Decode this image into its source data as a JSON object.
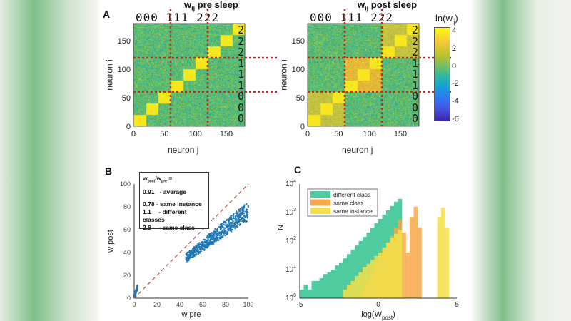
{
  "panels": {
    "a": "A",
    "b": "B",
    "c": "C"
  },
  "chart_data": [
    {
      "type": "heatmap",
      "id": "pre",
      "title": "w_ij pre sleep",
      "title_main": "w",
      "title_sub": "ij",
      "title_rest": " pre sleep",
      "xlabel": "neuron j",
      "ylabel": "neuron i",
      "xlim": [
        0,
        180
      ],
      "ylim": [
        0,
        180
      ],
      "xticks": [
        "0",
        "50",
        "100",
        "150"
      ],
      "yticks": [
        "0",
        "50",
        "100",
        "150"
      ],
      "class_boundaries": [
        60,
        120
      ],
      "top_digits": "000 111 222",
      "side_digits": [
        "2",
        "2",
        "2",
        "1",
        "1",
        "1",
        "0",
        "0",
        "0"
      ]
    },
    {
      "type": "heatmap",
      "id": "post",
      "title": "w_ij post sleep",
      "title_main": "w",
      "title_sub": "ij",
      "title_rest": " post sleep",
      "xlabel": "neuron j",
      "ylabel": "neuron i",
      "xlim": [
        0,
        180
      ],
      "ylim": [
        0,
        180
      ],
      "xticks": [
        "0",
        "50",
        "100",
        "150"
      ],
      "yticks": [
        "0",
        "50",
        "100",
        "150"
      ],
      "class_boundaries": [
        60,
        120
      ],
      "top_digits": "000 111 222",
      "side_digits": [
        "2",
        "2",
        "2",
        "1",
        "1",
        "1",
        "0",
        "0",
        "0"
      ]
    },
    {
      "type": "colorbar",
      "label_main": "ln(w",
      "label_sub": "ij",
      "label_end": ")",
      "range": [
        -6,
        4.5
      ],
      "ticks": [
        "4",
        "2",
        "0",
        "-2",
        "-4",
        "-6"
      ],
      "colormap": "parula"
    },
    {
      "type": "scatter",
      "xlabel": "w pre",
      "ylabel": "w post",
      "xlim": [
        0,
        100
      ],
      "ylim": [
        0,
        100
      ],
      "xticks": [
        "0",
        "20",
        "40",
        "60",
        "80",
        "100"
      ],
      "yticks": [
        "0",
        "20",
        "40",
        "60",
        "80",
        "100"
      ],
      "reference_line": "y = x (red dashed)",
      "color": "#1f77b4",
      "annotation": {
        "header_main": "w",
        "header_sub1": "post",
        "header_slash": "/w",
        "header_sub2": "pre",
        "header_eq": " =",
        "rows": [
          {
            "value": "0.91",
            "label": "- average"
          },
          {
            "value": "0.78",
            "label": "- same instance"
          },
          {
            "value": "1.1",
            "label": "- different classes"
          },
          {
            "value": "2.8",
            "label": "- same class"
          }
        ]
      },
      "series": [
        {
          "x_range": [
            0,
            3
          ],
          "ratio": 2.8
        },
        {
          "x_range": [
            45,
            100
          ],
          "ratio": 0.78
        }
      ]
    },
    {
      "type": "bar",
      "subtype": "histogram",
      "xlabel_main": "log(W",
      "xlabel_sub": "post",
      "xlabel_end": ")",
      "ylabel": "N",
      "xlim": [
        -5,
        5
      ],
      "ylim": [
        1,
        10000
      ],
      "yscale": "log",
      "xticks": [
        "-5",
        "0",
        "5"
      ],
      "yticks": [
        "10^0",
        "10^1",
        "10^2",
        "10^3",
        "10^4"
      ],
      "legend": "top-left",
      "bin_width": 0.25,
      "series": [
        {
          "name": "different class",
          "color": "#4fcb9f",
          "x": [
            -5,
            -4.75,
            -4.5,
            -4.25,
            -4,
            -3.75,
            -3.5,
            -3.25,
            -3,
            -2.75,
            -2.5,
            -2.25,
            -2,
            -1.75,
            -1.5,
            -1.25,
            -1,
            -0.75,
            -0.5,
            -0.25,
            0,
            0.25,
            0.5,
            0.75,
            1,
            1.25
          ],
          "values": [
            2,
            3,
            2,
            4,
            4,
            5,
            7,
            8,
            10,
            14,
            18,
            25,
            35,
            50,
            70,
            100,
            140,
            200,
            290,
            420,
            600,
            850,
            1200,
            1700,
            2400,
            3000
          ]
        },
        {
          "name": "same class",
          "color": "#f7a84a",
          "x": [
            -1,
            -0.75,
            -0.5,
            -0.25,
            0,
            0.25,
            0.5,
            0.75,
            1,
            1.25,
            1.5,
            1.75,
            2,
            2.25,
            2.5
          ],
          "values": [
            2,
            4,
            8,
            15,
            30,
            50,
            90,
            150,
            300,
            550,
            200,
            40,
            700,
            1600,
            300
          ]
        },
        {
          "name": "same instance",
          "color": "#f5e04a",
          "x": [
            -2.25,
            -2,
            -1.75,
            -1.5,
            -1.25,
            -1,
            -0.75,
            -0.5,
            -0.25,
            0,
            0.25,
            0.5,
            0.75,
            1,
            1.25,
            3.75,
            4,
            4.25
          ],
          "values": [
            2,
            3,
            4,
            6,
            8,
            12,
            16,
            22,
            30,
            40,
            60,
            90,
            130,
            180,
            250,
            700,
            1500,
            300
          ]
        }
      ]
    }
  ]
}
